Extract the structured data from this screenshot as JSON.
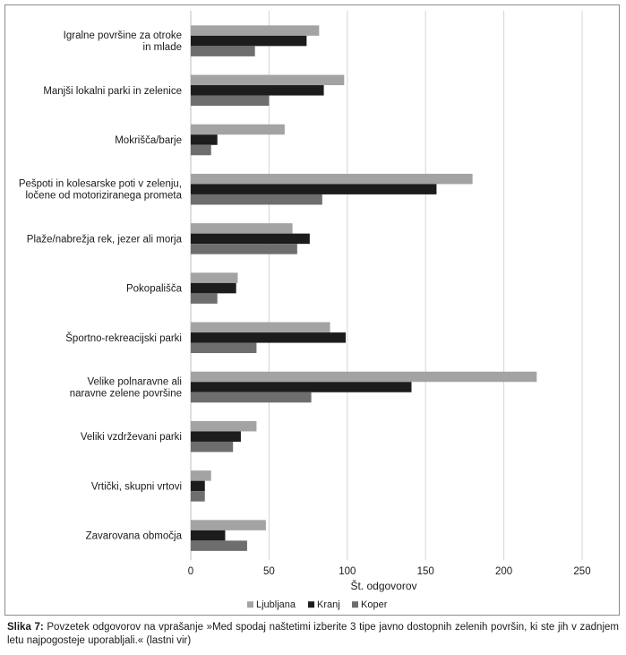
{
  "chart_data": {
    "type": "bar",
    "orientation": "horizontal",
    "categories": [
      [
        "Igralne površine za otroke",
        "in mlade"
      ],
      [
        "Manjši lokalni parki in zelenice"
      ],
      [
        "Mokrišča/barje"
      ],
      [
        "Pešpoti in kolesarske poti v zelenju,",
        "ločene od motoriziranega prometa"
      ],
      [
        "Plaže/nabrežja rek, jezer ali morja"
      ],
      [
        "Pokopališča"
      ],
      [
        "Športno-rekreacijski parki"
      ],
      [
        "Velike polnaravne ali",
        "naravne zelene površine"
      ],
      [
        "Veliki vzdrževani parki"
      ],
      [
        "Vrtički, skupni vrtovi"
      ],
      [
        "Zavarovana območja"
      ]
    ],
    "series": [
      {
        "name": "Ljubljana",
        "color": "#a3a3a3",
        "values": [
          82,
          98,
          60,
          180,
          65,
          30,
          89,
          221,
          42,
          13,
          48
        ]
      },
      {
        "name": "Kranj",
        "color": "#1c1c1c",
        "values": [
          74,
          85,
          17,
          157,
          76,
          29,
          99,
          141,
          32,
          9,
          22
        ]
      },
      {
        "name": "Koper",
        "color": "#6e6e6e",
        "values": [
          41,
          50,
          13,
          84,
          68,
          17,
          42,
          77,
          27,
          9,
          36
        ]
      }
    ],
    "xlabel": "Št. odgovorov",
    "ylabel": "",
    "xlim": [
      0,
      250
    ],
    "xticks": [
      0,
      50,
      100,
      150,
      200,
      250
    ],
    "grid": true,
    "legend_position": "bottom"
  },
  "caption": {
    "label": "Slika 7:",
    "text": "Povzetek odgovorov na vprašanje »Med spodaj naštetimi izberite 3 tipe javno dostopnih zelenih površin, ki ste jih v zadnjem letu najpogosteje uporabljali.« (lastni vir)"
  }
}
